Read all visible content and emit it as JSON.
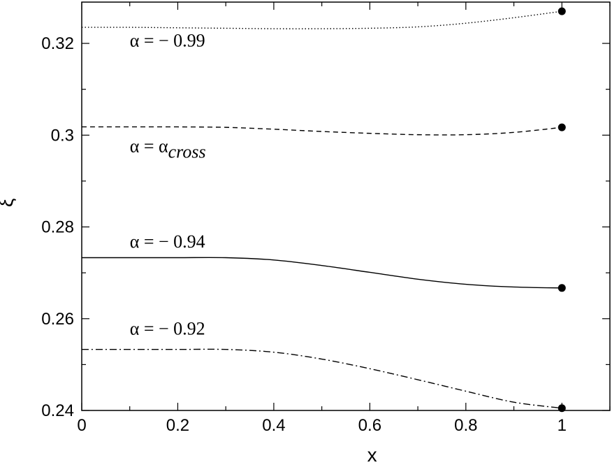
{
  "chart_data": {
    "type": "line",
    "xlabel": "x",
    "ylabel": "ξ",
    "xlim": [
      0,
      1.1
    ],
    "ylim": [
      0.24,
      0.329
    ],
    "xticks": [
      0,
      0.2,
      0.4,
      0.6,
      0.8,
      1
    ],
    "xtick_labels": [
      "0",
      "0.2",
      "0.4",
      "0.6",
      "0.8",
      "1"
    ],
    "yticks": [
      0.24,
      0.26,
      0.28,
      0.3,
      0.32
    ],
    "ytick_labels": [
      "0.24",
      "0.26",
      "0.28",
      "0.3",
      "0.32"
    ],
    "grid": false,
    "series": [
      {
        "label_main": "α = − 0.99",
        "label_sub": "",
        "style": "dotted",
        "x": [
          0,
          0.1,
          0.2,
          0.3,
          0.4,
          0.5,
          0.6,
          0.7,
          0.8,
          0.9,
          1.0
        ],
        "y": [
          0.3235,
          0.3235,
          0.3234,
          0.3233,
          0.3232,
          0.3232,
          0.3233,
          0.3236,
          0.3244,
          0.3256,
          0.327
        ],
        "endpoint": [
          1.0,
          0.327
        ],
        "label_anchor": [
          0.1,
          0.3193
        ]
      },
      {
        "label_main": "α = α",
        "label_sub": "cross",
        "style": "dashed",
        "x": [
          0,
          0.1,
          0.2,
          0.3,
          0.4,
          0.5,
          0.6,
          0.7,
          0.8,
          0.9,
          1.0
        ],
        "y": [
          0.3018,
          0.3018,
          0.3018,
          0.3017,
          0.3013,
          0.3008,
          0.3004,
          0.3001,
          0.3001,
          0.3006,
          0.3017
        ],
        "endpoint": [
          1.0,
          0.3017
        ],
        "label_anchor": [
          0.1,
          0.2963
        ]
      },
      {
        "label_main": "α = − 0.94",
        "label_sub": "",
        "style": "solid",
        "x": [
          0,
          0.1,
          0.2,
          0.3,
          0.4,
          0.5,
          0.6,
          0.7,
          0.8,
          0.9,
          1.0
        ],
        "y": [
          0.2733,
          0.2733,
          0.2733,
          0.2733,
          0.2728,
          0.2716,
          0.2701,
          0.2686,
          0.2675,
          0.2669,
          0.2667
        ],
        "endpoint": [
          1.0,
          0.2667
        ],
        "label_anchor": [
          0.1,
          0.2755
        ]
      },
      {
        "label_main": "α = − 0.92",
        "label_sub": "",
        "style": "dashdot",
        "x": [
          0,
          0.1,
          0.2,
          0.3,
          0.4,
          0.5,
          0.6,
          0.7,
          0.8,
          0.9,
          1.0
        ],
        "y": [
          0.2533,
          0.2533,
          0.2533,
          0.2533,
          0.2527,
          0.2512,
          0.2491,
          0.2467,
          0.2442,
          0.2418,
          0.2405
        ],
        "endpoint": [
          1.0,
          0.2405
        ],
        "label_anchor": [
          0.1,
          0.2565
        ]
      }
    ]
  }
}
